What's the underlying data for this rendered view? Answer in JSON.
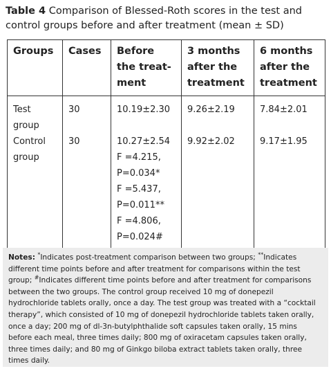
{
  "title": {
    "label": "Table 4",
    "text": "Comparison of Blessed-Roth scores in the test and control groups before and after treatment (mean ± SD)"
  },
  "table": {
    "headers": [
      [
        "Groups"
      ],
      [
        "Cases"
      ],
      [
        "Before",
        "the treat-",
        "ment"
      ],
      [
        "3 months",
        "after the",
        "treatment"
      ],
      [
        "6 months",
        "after the",
        "treatment"
      ]
    ],
    "rows": [
      [
        [
          "Test",
          "group"
        ],
        [
          "30"
        ],
        [
          "10.19±2.30"
        ],
        [
          "9.26±2.19"
        ],
        [
          "7.84±2.01"
        ]
      ],
      [
        [
          "Control",
          "group"
        ],
        [
          "30"
        ],
        [
          "10.27±2.54",
          "F =4.215,",
          "P=0.034*",
          "F =5.437,",
          "P=0.011**",
          "F =4.806,",
          "P=0.024#"
        ],
        [
          "9.92±2.02"
        ],
        [
          "9.17±1.95"
        ]
      ]
    ]
  },
  "notes": {
    "label": "Notes:",
    "items": [
      {
        "marker": "*",
        "text": "Indicates post-treatment comparison between two groups; "
      },
      {
        "marker": "**",
        "text": "Indicates different time points before and after treatment for comparisons within the test group; "
      },
      {
        "marker": "#",
        "text": "Indicates different time points before and after treatment for comparisons between the two groups. "
      }
    ],
    "body": "The control group received 10 mg of donepezil hydrochloride tablets orally, once a day. The test group was treated with a “cocktail therapy”, which consisted of 10 mg of donepezil hydrochloride tablets taken orally, once a day; 200 mg of dl-3n-butylphthalide soft capsules taken orally, 15 mins before each meal, three times daily; 800 mg of oxiracetam capsules taken orally, three times daily; and 80 mg of Ginkgo biloba extract tablets taken orally, three times daily."
  }
}
